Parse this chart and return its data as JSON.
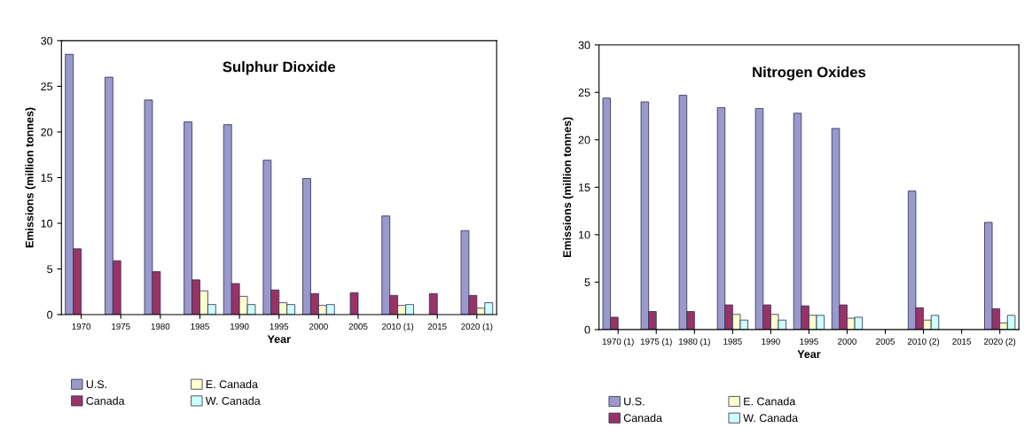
{
  "chart_data": [
    {
      "type": "bar",
      "title": "Sulphur Dioxide",
      "xlabel": "Year",
      "ylabel": "Emissions (million tonnes)",
      "categories": [
        "1970",
        "1975",
        "1980",
        "1985",
        "1990",
        "1995",
        "2000",
        "2005",
        "2010 (1)",
        "2015",
        "2020 (1)"
      ],
      "series": [
        {
          "name": "U.S.",
          "color": "#9999cc",
          "values": [
            28.5,
            26.0,
            23.5,
            21.1,
            20.8,
            16.9,
            14.9,
            null,
            10.8,
            null,
            9.2
          ]
        },
        {
          "name": "Canada",
          "color": "#993366",
          "values": [
            7.2,
            5.9,
            4.7,
            3.8,
            3.4,
            2.7,
            2.3,
            2.4,
            2.1,
            2.3,
            2.1
          ]
        },
        {
          "name": "E. Canada",
          "color": "#ffffcc",
          "values": [
            null,
            null,
            null,
            2.6,
            2.0,
            1.3,
            1.0,
            null,
            1.0,
            null,
            0.7
          ]
        },
        {
          "name": "W. Canada",
          "color": "#ccffff",
          "values": [
            null,
            null,
            null,
            1.1,
            1.1,
            1.1,
            1.1,
            null,
            1.1,
            null,
            1.3
          ]
        }
      ],
      "ylim": [
        0,
        30
      ],
      "yticks": [
        0,
        5,
        10,
        15,
        20,
        25,
        30
      ],
      "grid": false,
      "legend": "bottom"
    },
    {
      "type": "bar",
      "title": "Nitrogen Oxides",
      "xlabel": "Year",
      "ylabel": "Emissions (million tonnes)",
      "categories": [
        "1970 (1)",
        "1975 (1)",
        "1980 (1)",
        "1985",
        "1990",
        "1995",
        "2000",
        "2005",
        "2010 (2)",
        "2015",
        "2020 (2)"
      ],
      "series": [
        {
          "name": "U.S.",
          "color": "#9999cc",
          "values": [
            24.4,
            24.0,
            24.7,
            23.4,
            23.3,
            22.8,
            21.2,
            null,
            14.6,
            null,
            11.3
          ]
        },
        {
          "name": "Canada",
          "color": "#993366",
          "values": [
            1.3,
            1.9,
            1.9,
            2.6,
            2.6,
            2.5,
            2.6,
            null,
            2.3,
            null,
            2.2
          ]
        },
        {
          "name": "E. Canada",
          "color": "#ffffcc",
          "values": [
            null,
            null,
            null,
            1.6,
            1.6,
            1.5,
            1.2,
            null,
            1.0,
            null,
            0.7
          ]
        },
        {
          "name": "W. Canada",
          "color": "#ccffff",
          "values": [
            null,
            null,
            null,
            1.0,
            1.0,
            1.5,
            1.3,
            null,
            1.5,
            null,
            1.5
          ]
        }
      ],
      "ylim": [
        0,
        30
      ],
      "yticks": [
        0,
        5,
        10,
        15,
        20,
        25,
        30
      ],
      "grid": false,
      "legend": "bottom"
    }
  ]
}
